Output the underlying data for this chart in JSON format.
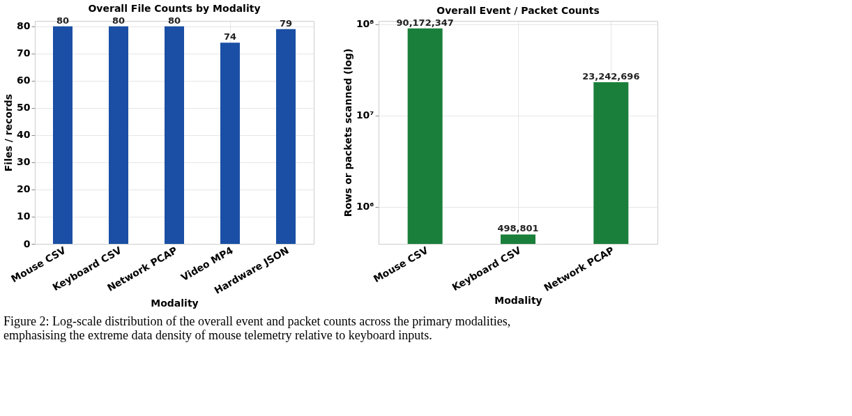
{
  "chart_data": [
    {
      "type": "bar",
      "title": "Overall File Counts by Modality",
      "xlabel": "Modality",
      "ylabel": "Files / records",
      "categories": [
        "Mouse CSV",
        "Keyboard CSV",
        "Network PCAP",
        "Video MP4",
        "Hardware JSON"
      ],
      "series": [
        {
          "color": "#1a4fa5",
          "values": [
            80,
            80,
            80,
            74,
            79
          ]
        }
      ],
      "ylim": [
        0,
        82
      ],
      "yticks": [
        0,
        10,
        20,
        30,
        40,
        50,
        60,
        70,
        80
      ],
      "grid": true,
      "data_labels": true
    },
    {
      "type": "bar",
      "title": "Overall Event / Packet Counts",
      "xlabel": "Modality",
      "ylabel": "Rows or packets scanned (log)",
      "categories": [
        "Mouse CSV",
        "Keyboard CSV",
        "Network PCAP"
      ],
      "series": [
        {
          "color": "#1a7f3a",
          "values": [
            90172347,
            498801,
            23242696
          ],
          "value_labels": [
            "90,172,347",
            "498,801",
            "23,242,696"
          ]
        }
      ],
      "log": true,
      "ylim": [
        393000,
        109000000
      ],
      "yticks": [
        {
          "value": 1000000,
          "label": "10⁶"
        },
        {
          "value": 10000000,
          "label": "10⁷"
        },
        {
          "value": 100000000,
          "label": "10⁸"
        }
      ],
      "grid": true,
      "annotations": [
        "Figure 2: Log-scale distribution of the overall event and packet counts across the primary modalities, emphasising the extreme data density of mouse telemetry relative to keyboard inputs."
      ]
    }
  ]
}
